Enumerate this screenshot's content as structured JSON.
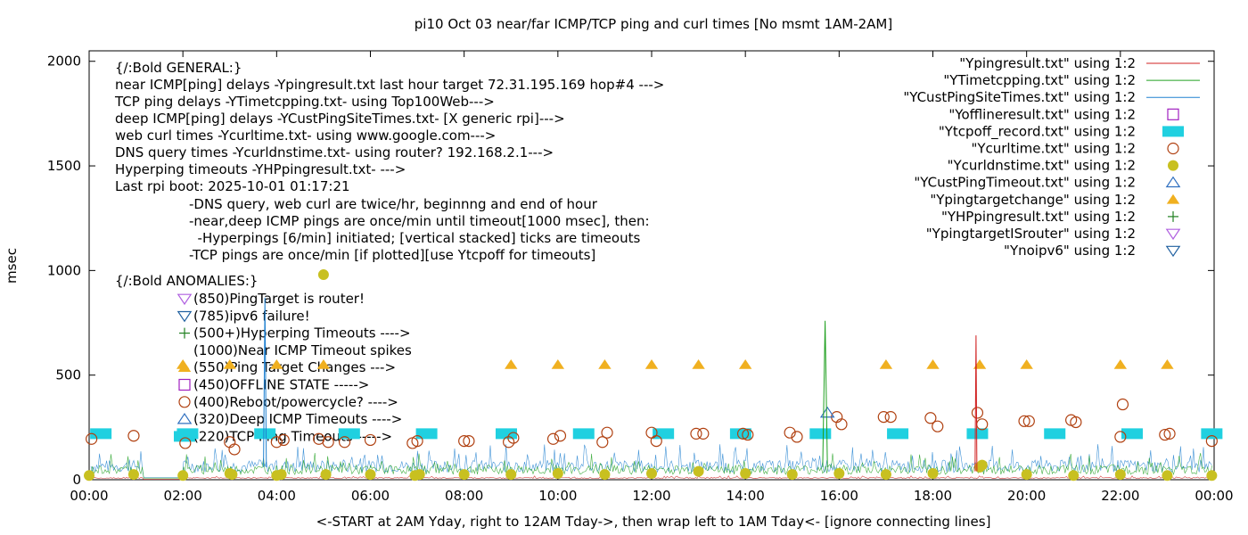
{
  "chart_data": {
    "type": "scatter",
    "title": "pi10 Oct 03  near/far ICMP/TCP ping and curl times [No msmt 1AM-2AM]",
    "xlabel": "<-START at 2AM Yday, right to 12AM Tday->, then wrap left to 1AM Tday<- [ignore connecting lines]",
    "ylabel": "msec",
    "xlim": [
      0,
      24
    ],
    "ylim": [
      0,
      2050
    ],
    "x_ticks": [
      "00:00",
      "02:00",
      "04:00",
      "06:00",
      "08:00",
      "10:00",
      "12:00",
      "14:00",
      "16:00",
      "18:00",
      "20:00",
      "22:00",
      "00:00"
    ],
    "y_ticks": [
      "0",
      "500",
      "1000",
      "1500",
      "2000"
    ],
    "y_tick_values": [
      0,
      500,
      1000,
      1500,
      2000
    ],
    "grid": false,
    "legend_position": "top-right",
    "annotations": {
      "general_header": "{/:Bold GENERAL:}",
      "general_lines": [
        "near ICMP[ping] delays -Ypingresult.txt last hour target 72.31.195.169 hop#4 --->",
        "TCP ping delays -YTimetcpping.txt- using Top100Web--->",
        "deep ICMP[ping] delays -YCustPingSiteTimes.txt- [X generic rpi]--->",
        "web curl times -Ycurltime.txt- using www.google.com--->",
        "DNS query times -Ycurldnstime.txt- using router? 192.168.2.1--->",
        "Hyperping timeouts -YHPpingresult.txt- --->",
        "Last rpi boot: 2025-10-01 01:17:21"
      ],
      "notes": [
        "-DNS query, web curl are twice/hr, beginnng and end of hour",
        "-near,deep ICMP pings are once/min until timeout[1000 msec], then:",
        "  -Hyperpings [6/min] initiated; [vertical stacked] ticks are timeouts",
        "-TCP pings are once/min [if plotted][use Ytcpoff for timeouts]"
      ],
      "anomalies_header": "{/:Bold ANOMALIES:}",
      "anomalies": [
        {
          "marker": "tri-down-open",
          "color": "#b060e0",
          "text": "(850)PingTarget is router!"
        },
        {
          "marker": "tri-down-open",
          "color": "#2060a0",
          "text": "(785)ipv6 failure!"
        },
        {
          "marker": "plus",
          "color": "#208020",
          "text": "(500+)Hyperping Timeouts ---->"
        },
        {
          "marker": "none",
          "color": "#000000",
          "text": "(1000)Near ICMP Timeout spikes"
        },
        {
          "marker": "tri-up-filled",
          "color": "#f0b020",
          "text": "(550)Ping Target Changes --->"
        },
        {
          "marker": "square-open",
          "color": "#a020c0",
          "text": "(450)OFFLINE STATE ----->"
        },
        {
          "marker": "circle-open",
          "color": "#b04010",
          "text": "(400)Reboot/powercycle? ---->"
        },
        {
          "marker": "tri-up-open",
          "color": "#3070c0",
          "text": "(320)Deep ICMP Timeouts ---->"
        },
        {
          "marker": "square-filled",
          "color": "#20d0e0",
          "text": "(220)TCP Ping Timeouts ----->"
        }
      ]
    },
    "legend": [
      {
        "label": "\"Ypingresult.txt\" using 1:2",
        "marker": "line",
        "color": "#d02020"
      },
      {
        "label": "\"YTimetcpping.txt\" using 1:2",
        "marker": "line",
        "color": "#20a020"
      },
      {
        "label": "\"YCustPingSiteTimes.txt\" using 1:2",
        "marker": "line",
        "color": "#2080d0"
      },
      {
        "label": "\"Yofflineresult.txt\" using 1:2",
        "marker": "square-open",
        "color": "#a020c0"
      },
      {
        "label": "\"Ytcpoff_record.txt\" using 1:2",
        "marker": "square-filled",
        "color": "#20d0e0"
      },
      {
        "label": "\"Ycurltime.txt\" using 1:2",
        "marker": "circle-open",
        "color": "#b04010"
      },
      {
        "label": "\"Ycurldnstime.txt\" using 1:2",
        "marker": "circle-filled",
        "color": "#c8c020"
      },
      {
        "label": "\"YCustPingTimeout.txt\" using 1:2",
        "marker": "tri-up-open",
        "color": "#3070c0"
      },
      {
        "label": "\"Ypingtargetchange\" using 1:2",
        "marker": "tri-up-filled",
        "color": "#f0b020"
      },
      {
        "label": "\"YHPpingresult.txt\" using 1:2",
        "marker": "plus",
        "color": "#208020"
      },
      {
        "label": "\"YpingtargetISrouter\" using 1:2",
        "marker": "tri-down-open",
        "color": "#b060e0"
      },
      {
        "label": "\"Ynoipv6\" using 1:2",
        "marker": "tri-down-open",
        "color": "#2060a0"
      }
    ],
    "series": [
      {
        "name": "\"Ypingtargetchange\" using 1:2",
        "marker": "tri-up-filled",
        "color": "#f0b020",
        "x": [
          2.0,
          3.0,
          4.0,
          5.0,
          9.0,
          10.0,
          11.0,
          12.0,
          13.0,
          14.0,
          17.0,
          18.0,
          19.0,
          20.0,
          22.0,
          23.0
        ],
        "y": [
          550,
          550,
          550,
          550,
          550,
          550,
          550,
          550,
          550,
          550,
          550,
          550,
          550,
          550,
          550,
          550
        ]
      },
      {
        "name": "\"Ytcpoff_record.txt\" using 1:2",
        "marker": "square-filled",
        "color": "#20d0e0",
        "x": [
          0.25,
          2.1,
          3.75,
          5.55,
          7.2,
          8.9,
          10.55,
          12.25,
          13.9,
          15.6,
          17.25,
          18.95,
          20.6,
          22.25,
          23.95
        ],
        "y": [
          220,
          220,
          220,
          220,
          220,
          220,
          220,
          220,
          220,
          220,
          220,
          220,
          220,
          220,
          220
        ]
      },
      {
        "name": "\"Ycurltime.txt\" using 1:2",
        "marker": "circle-open",
        "color": "#b04010",
        "x": [
          0.05,
          0.95,
          2.05,
          3.0,
          3.1,
          4.0,
          4.15,
          4.9,
          5.1,
          5.45,
          6.0,
          6.9,
          7.0,
          8.0,
          8.1,
          8.95,
          9.05,
          9.9,
          10.05,
          10.95,
          11.05,
          12.0,
          12.1,
          12.95,
          13.1,
          13.95,
          14.05,
          14.95,
          15.1,
          15.95,
          16.05,
          16.95,
          17.1,
          17.95,
          18.1,
          18.95,
          19.05,
          19.95,
          20.05,
          20.95,
          21.05,
          22.0,
          22.05,
          22.95,
          23.05,
          23.95
        ],
        "y": [
          195,
          210,
          175,
          180,
          145,
          180,
          190,
          195,
          180,
          180,
          190,
          175,
          185,
          185,
          185,
          180,
          200,
          195,
          210,
          180,
          225,
          225,
          185,
          220,
          220,
          220,
          215,
          225,
          205,
          300,
          265,
          300,
          300,
          295,
          255,
          320,
          265,
          280,
          280,
          285,
          275,
          205,
          360,
          215,
          220,
          185
        ]
      },
      {
        "name": "\"Ycurldnstime.txt\" using 1:2",
        "marker": "circle-filled",
        "color": "#c8c020",
        "x": [
          0.0,
          0.95,
          2.0,
          3.0,
          3.05,
          4.0,
          4.1,
          5.0,
          5.05,
          6.0,
          6.95,
          7.05,
          8.0,
          9.0,
          10.0,
          11.0,
          12.0,
          13.0,
          14.0,
          15.0,
          16.0,
          17.0,
          18.0,
          19.0,
          19.05,
          20.0,
          21.0,
          22.0,
          23.0,
          23.95
        ],
        "y": [
          20,
          25,
          20,
          30,
          25,
          20,
          25,
          980,
          25,
          25,
          20,
          25,
          25,
          25,
          30,
          25,
          30,
          40,
          30,
          25,
          30,
          25,
          30,
          60,
          70,
          25,
          20,
          25,
          20,
          20
        ]
      },
      {
        "name": "\"YCustPingTimeout.txt\" using 1:2",
        "marker": "tri-up-open",
        "color": "#3070c0",
        "x": [
          15.75
        ],
        "y": [
          320
        ]
      },
      {
        "name": "\"Ypingresult.txt\" using 1:2",
        "marker": "line",
        "color": "#d02020",
        "x": [
          18.9,
          18.92,
          18.94
        ],
        "y": [
          40,
          690,
          40
        ]
      },
      {
        "name": "\"YTimetcpping.txt\" using 1:2",
        "marker": "line",
        "color": "#20a020",
        "x": [
          15.65,
          15.7,
          15.75
        ],
        "y": [
          60,
          760,
          60
        ]
      },
      {
        "name": "\"YCustPingSiteTimes.txt\" using 1:2",
        "marker": "line",
        "color": "#2080d0",
        "x": [
          3.72,
          3.75,
          3.78
        ],
        "y": [
          60,
          870,
          60
        ]
      }
    ]
  }
}
